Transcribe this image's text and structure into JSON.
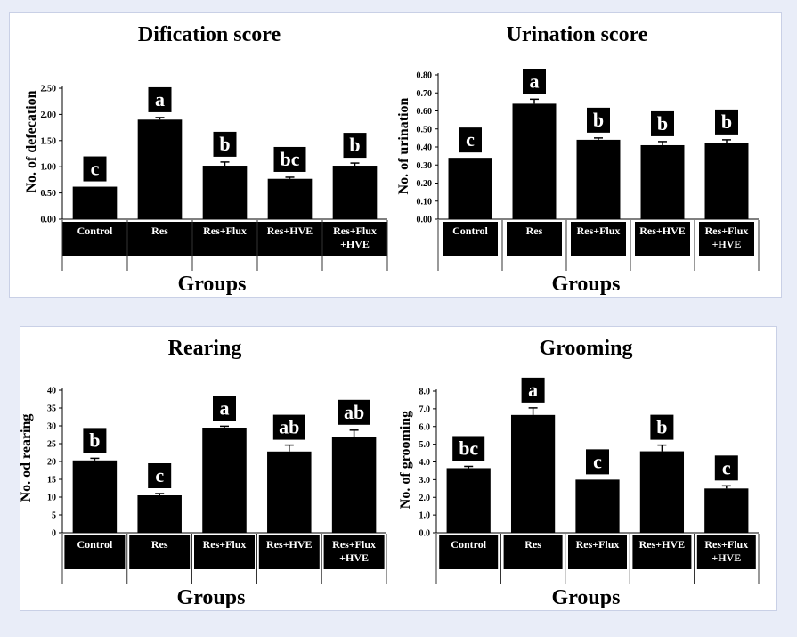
{
  "colors": {
    "bar": "#000000",
    "label_box": "#000000",
    "label_text": "#ffffff",
    "background": "#e9edf8",
    "panel": "#ffffff"
  },
  "chart_data": [
    {
      "type": "bar",
      "title": "Dification score",
      "ylabel": "No. of defecation",
      "xlabel": "Groups",
      "categories": [
        "Control",
        "Res",
        "Res+Flux",
        "Res+HVE",
        "Res+Flux\n+HVE"
      ],
      "values": [
        0.62,
        1.9,
        1.02,
        0.77,
        1.02
      ],
      "errors": [
        0.0,
        0.04,
        0.07,
        0.03,
        0.05
      ],
      "letters": [
        "c",
        "a",
        "b",
        "bc",
        "b"
      ],
      "ylim": [
        0,
        2.5
      ],
      "yticks": [
        "0.00",
        "0.50",
        "1.00",
        "1.50",
        "2.00",
        "2.50"
      ],
      "grid": false,
      "legend": "none"
    },
    {
      "type": "bar",
      "title": "Urination score",
      "ylabel": "No. of urination",
      "xlabel": "Groups",
      "categories": [
        "Control",
        "Res",
        "Res+Flux",
        "Res+HVE",
        "Res+Flux\n+HVE"
      ],
      "values": [
        0.34,
        0.64,
        0.44,
        0.41,
        0.42
      ],
      "errors": [
        0.0,
        0.025,
        0.01,
        0.02,
        0.02
      ],
      "letters": [
        "c",
        "a",
        "b",
        "b",
        "b"
      ],
      "ylim": [
        0,
        0.8
      ],
      "yticks": [
        "0.00",
        "0.10",
        "0.20",
        "0.30",
        "0.40",
        "0.50",
        "0.60",
        "0.70",
        "0.80"
      ],
      "grid": false,
      "legend": "none"
    },
    {
      "type": "bar",
      "title": "Rearing",
      "ylabel": "No. od rearing",
      "xlabel": "Groups",
      "categories": [
        "Control",
        "Res",
        "Res+Flux",
        "Res+HVE",
        "Res+Flux\n+HVE"
      ],
      "values": [
        20.3,
        10.5,
        29.5,
        22.8,
        27.0
      ],
      "errors": [
        0.6,
        0.5,
        0.4,
        1.8,
        1.8
      ],
      "letters": [
        "b",
        "c",
        "a",
        "ab",
        "ab"
      ],
      "ylim": [
        0,
        40
      ],
      "yticks": [
        "0",
        "5",
        "10",
        "15",
        "20",
        "25",
        "30",
        "35",
        "40"
      ],
      "grid": false,
      "legend": "none"
    },
    {
      "type": "bar",
      "title": "Grooming",
      "ylabel": "No. of grooming",
      "xlabel": "Groups",
      "categories": [
        "Control",
        "Res",
        "Res+Flux",
        "Res+HVE",
        "Res+Flux\n+HVE"
      ],
      "values": [
        3.65,
        6.65,
        3.0,
        4.6,
        2.5
      ],
      "errors": [
        0.1,
        0.4,
        0.0,
        0.35,
        0.15
      ],
      "letters": [
        "bc",
        "a",
        "c",
        "b",
        "c"
      ],
      "ylim": [
        0,
        8
      ],
      "yticks": [
        "0.0",
        "1.0",
        "2.0",
        "3.0",
        "4.0",
        "5.0",
        "6.0",
        "7.0",
        "8.0"
      ],
      "grid": false,
      "legend": "none"
    }
  ]
}
